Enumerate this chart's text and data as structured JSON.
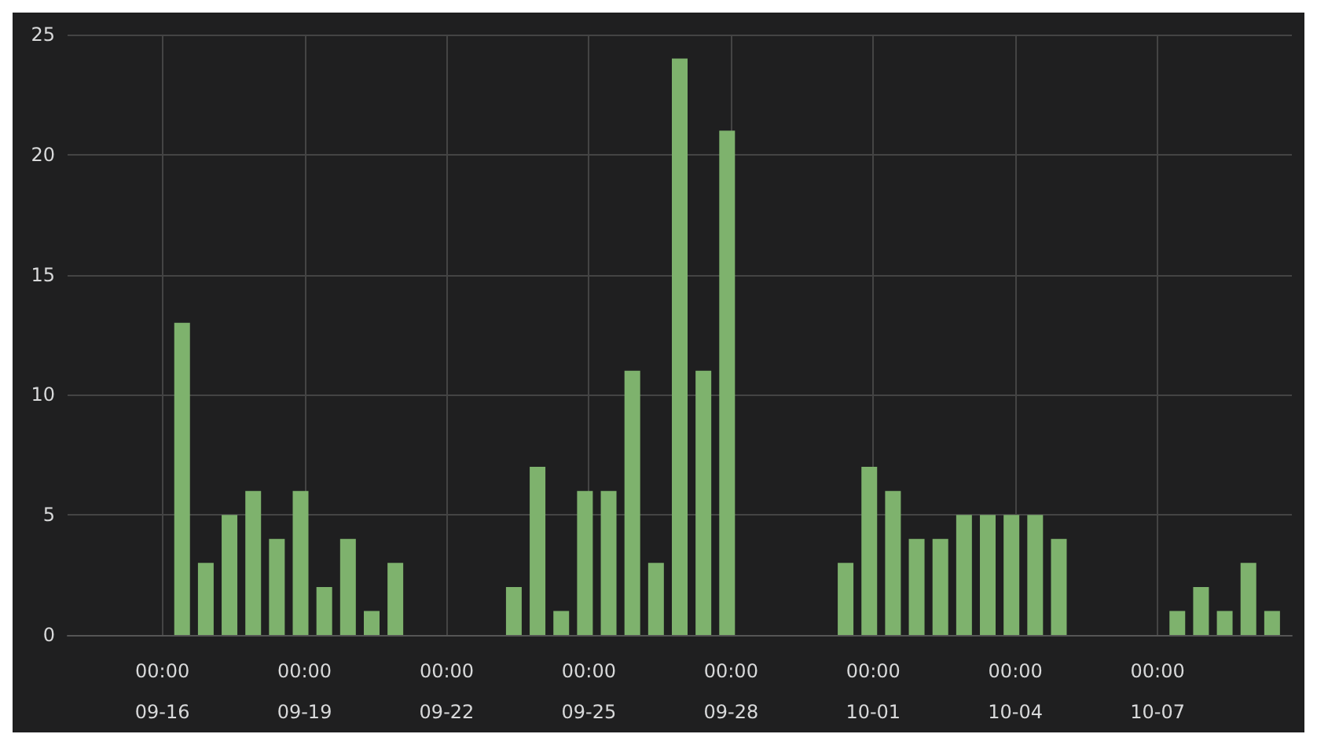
{
  "chart_data": {
    "type": "bar",
    "x": [
      "--09-16T10:00",
      "--09-16T22:00",
      "--09-17T10:00",
      "--09-17T22:00",
      "--09-18T10:00",
      "--09-18T22:00",
      "--09-19T10:00",
      "--09-19T22:00",
      "--09-20T10:00",
      "--09-20T22:00",
      "--09-23T10:00",
      "--09-23T22:00",
      "--09-24T10:00",
      "--09-24T22:00",
      "--09-25T10:00",
      "--09-25T22:00",
      "--09-26T10:00",
      "--09-26T22:00",
      "--09-27T10:00",
      "--09-27T22:00",
      "--09-30T10:00",
      "--09-30T22:00",
      "--10-01T10:00",
      "--10-01T22:00",
      "--10-02T10:00",
      "--10-02T22:00",
      "--10-03T10:00",
      "--10-03T22:00",
      "--10-04T10:00",
      "--10-04T22:00",
      "--10-07T10:00",
      "--10-07T22:00",
      "--10-08T10:00",
      "--10-08T22:00",
      "--10-09T10:00"
    ],
    "values": [
      13,
      3,
      5,
      6,
      4,
      6,
      2,
      4,
      1,
      3,
      2,
      7,
      1,
      6,
      6,
      11,
      3,
      24,
      11,
      21,
      3,
      7,
      6,
      4,
      4,
      5,
      5,
      5,
      5,
      4,
      1,
      2,
      1,
      3,
      1
    ],
    "color": "#7eb26d",
    "xlim": [
      "--09-14T00:00",
      "--10-09T20:00"
    ],
    "xticks": [
      {
        "value": "--09-16T00:00",
        "label": "00:00\n09-16"
      },
      {
        "value": "--09-19T00:00",
        "label": "00:00\n09-19"
      },
      {
        "value": "--09-22T00:00",
        "label": "00:00\n09-22"
      },
      {
        "value": "--09-25T00:00",
        "label": "00:00\n09-25"
      },
      {
        "value": "--09-28T00:00",
        "label": "00:00\n09-28"
      },
      {
        "value": "--10-01T00:00",
        "label": "00:00\n10-01"
      },
      {
        "value": "--10-04T00:00",
        "label": "00:00\n10-04"
      },
      {
        "value": "--10-07T00:00",
        "label": "00:00\n10-07"
      }
    ],
    "ylim": [
      0,
      25
    ],
    "yticks": [
      0,
      5,
      10,
      15,
      20,
      25
    ],
    "grid": true
  }
}
